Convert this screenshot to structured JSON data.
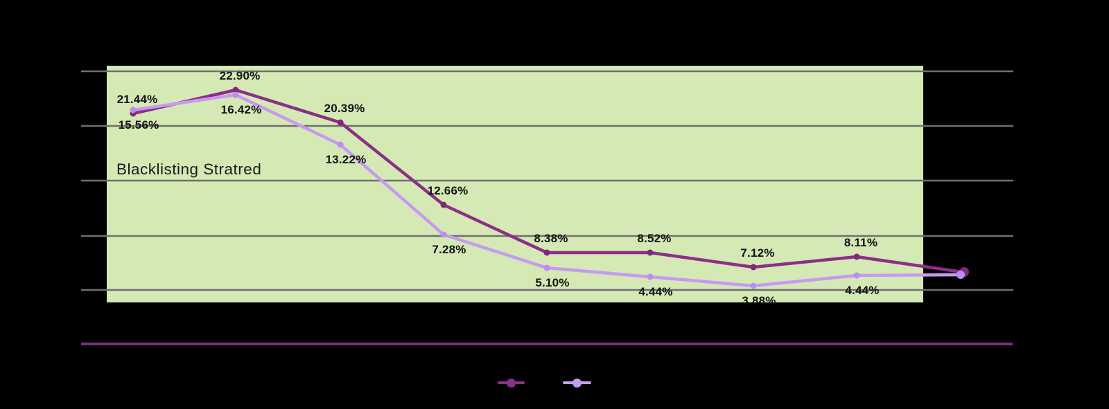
{
  "chart": {
    "annotation": "Blacklisting Stratred",
    "colors": {
      "page_background": "#000000",
      "plot_background": "#d5e9b4",
      "grid": "#6f6f6f",
      "series1": "#8c2f86",
      "series1_marker": "#7e2a78",
      "series2": "#c69af1",
      "series2_marker": "#bd8cf0",
      "divider": "#7d2d82",
      "label_text": "#111111"
    }
  },
  "chart_data": {
    "type": "line",
    "title": "",
    "xlabel": "",
    "ylabel": "",
    "num_points": 9,
    "categories": [
      "",
      "",
      "",
      "",
      "",
      "",
      "",
      "",
      ""
    ],
    "x_tick_labels_visible": false,
    "y_tick_labels_visible": false,
    "gridlines": {
      "horizontal_count": 5,
      "visible": true
    },
    "annotation": "Blacklisting Stratred",
    "series": [
      {
        "name": "series-1-dark-purple",
        "color": "#8c2f86",
        "values": [
          21.44,
          22.9,
          20.39,
          12.66,
          8.38,
          8.52,
          7.12,
          8.11,
          null
        ],
        "labels": [
          "21.44%",
          "22.90%",
          "20.39%",
          "12.66%",
          "8.38%",
          "8.52%",
          "7.12%",
          "8.11%",
          ""
        ]
      },
      {
        "name": "series-2-light-purple",
        "color": "#c69af1",
        "values": [
          15.56,
          16.42,
          13.22,
          7.28,
          5.1,
          4.44,
          3.88,
          4.44,
          null
        ],
        "labels": [
          "15.56%",
          "16.42%",
          "13.22%",
          "7.28%",
          "5.10%",
          "4.44%",
          "3.88%",
          "4.44%",
          ""
        ]
      }
    ],
    "legend": {
      "position": "bottom-center",
      "entries": [
        {
          "series": "series-1-dark-purple",
          "label": ""
        },
        {
          "series": "series-2-light-purple",
          "label": ""
        }
      ]
    }
  }
}
